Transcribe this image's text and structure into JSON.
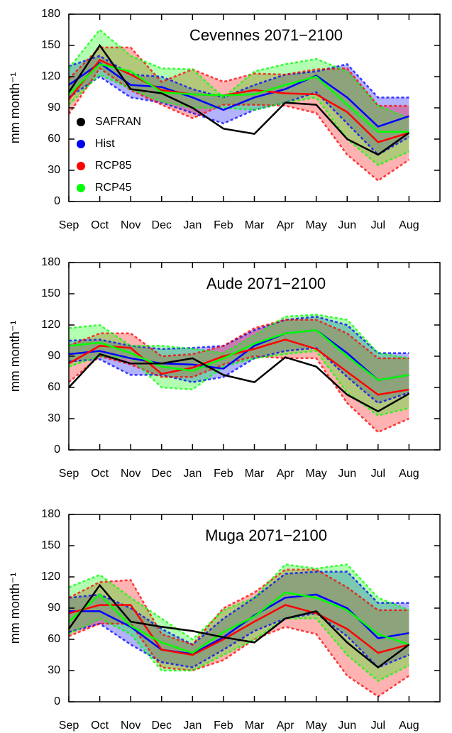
{
  "chart_data": [
    {
      "type": "line",
      "title": "Cevennes 2071−2100",
      "y_label": "mm month⁻¹",
      "legend": "center-left",
      "categories": [
        "Sep",
        "Oct",
        "Nov",
        "Dec",
        "Jan",
        "Feb",
        "Mar",
        "Apr",
        "May",
        "Jun",
        "Jul",
        "Aug"
      ],
      "ylim": [
        0,
        180
      ],
      "yticks": [
        0,
        30,
        60,
        90,
        120,
        150,
        180
      ],
      "series": [
        {
          "name": "SAFRAN",
          "color": "#000000",
          "values": [
            105,
            150,
            108,
            104,
            90,
            70,
            65,
            95,
            93,
            60,
            45,
            66
          ]
        },
        {
          "name": "Hist",
          "color": "#0000ff",
          "values": [
            112,
            133,
            112,
            110,
            100,
            88,
            100,
            108,
            121,
            100,
            72,
            82
          ],
          "lower": [
            100,
            120,
            100,
            95,
            85,
            75,
            88,
            95,
            105,
            75,
            45,
            62
          ],
          "upper": [
            130,
            140,
            122,
            120,
            108,
            100,
            112,
            122,
            125,
            132,
            100,
            100
          ]
        },
        {
          "name": "RCP85",
          "color": "#ff0000",
          "values": [
            98,
            136,
            122,
            107,
            103,
            102,
            107,
            104,
            103,
            86,
            57,
            66
          ],
          "lower": [
            84,
            128,
            107,
            93,
            80,
            93,
            93,
            92,
            85,
            45,
            20,
            40
          ],
          "upper": [
            118,
            148,
            148,
            115,
            127,
            115,
            123,
            122,
            127,
            128,
            92,
            92
          ]
        },
        {
          "name": "RCP45",
          "color": "#00ff00",
          "values": [
            103,
            132,
            125,
            105,
            103,
            102,
            103,
            112,
            120,
            93,
            67,
            67
          ],
          "lower": [
            93,
            122,
            108,
            96,
            90,
            90,
            88,
            95,
            100,
            60,
            35,
            48
          ],
          "upper": [
            128,
            165,
            140,
            128,
            127,
            100,
            125,
            132,
            137,
            125,
            92,
            80
          ]
        }
      ]
    },
    {
      "type": "line",
      "title": "Aude 2071−2100",
      "y_label": "mm month⁻¹",
      "categories": [
        "Sep",
        "Oct",
        "Nov",
        "Dec",
        "Jan",
        "Feb",
        "Mar",
        "Apr",
        "May",
        "Jun",
        "Jul",
        "Aug"
      ],
      "ylim": [
        0,
        180
      ],
      "yticks": [
        0,
        30,
        60,
        90,
        120,
        150,
        180
      ],
      "series": [
        {
          "name": "SAFRAN",
          "color": "#000000",
          "values": [
            60,
            92,
            83,
            83,
            88,
            72,
            65,
            89,
            80,
            53,
            37,
            54
          ]
        },
        {
          "name": "Hist",
          "color": "#0000ff",
          "values": [
            92,
            95,
            88,
            83,
            82,
            78,
            100,
            112,
            115,
            93,
            67,
            72
          ],
          "lower": [
            85,
            87,
            72,
            72,
            65,
            70,
            88,
            95,
            98,
            70,
            45,
            55
          ],
          "upper": [
            105,
            106,
            100,
            97,
            98,
            100,
            115,
            125,
            128,
            120,
            93,
            93
          ]
        },
        {
          "name": "RCP85",
          "color": "#ff0000",
          "values": [
            83,
            100,
            98,
            73,
            79,
            90,
            97,
            106,
            97,
            75,
            53,
            58
          ],
          "lower": [
            65,
            90,
            82,
            70,
            70,
            82,
            90,
            88,
            88,
            45,
            17,
            30
          ],
          "upper": [
            100,
            112,
            112,
            90,
            92,
            100,
            117,
            125,
            125,
            112,
            88,
            88
          ]
        },
        {
          "name": "RCP45",
          "color": "#00ff00",
          "values": [
            100,
            103,
            93,
            80,
            76,
            88,
            102,
            112,
            115,
            90,
            67,
            72
          ],
          "lower": [
            80,
            90,
            88,
            60,
            58,
            80,
            88,
            92,
            95,
            55,
            33,
            40
          ],
          "upper": [
            117,
            120,
            100,
            100,
            97,
            93,
            110,
            128,
            130,
            125,
            93,
            88
          ]
        }
      ]
    },
    {
      "type": "line",
      "title": "Muga 2071−2100",
      "y_label": "mm month⁻¹",
      "categories": [
        "Sep",
        "Oct",
        "Nov",
        "Dec",
        "Jan",
        "Feb",
        "Mar",
        "Apr",
        "May",
        "Jun",
        "Jul",
        "Aug"
      ],
      "ylim": [
        0,
        180
      ],
      "yticks": [
        0,
        30,
        60,
        90,
        120,
        150,
        180
      ],
      "series": [
        {
          "name": "SAFRAN",
          "color": "#000000",
          "values": [
            70,
            112,
            77,
            72,
            68,
            62,
            57,
            80,
            87,
            57,
            33,
            55
          ]
        },
        {
          "name": "Hist",
          "color": "#0000ff",
          "values": [
            87,
            87,
            72,
            50,
            46,
            62,
            83,
            100,
            103,
            90,
            61,
            66
          ],
          "lower": [
            67,
            75,
            55,
            38,
            33,
            50,
            68,
            80,
            85,
            63,
            33,
            45
          ],
          "upper": [
            100,
            103,
            90,
            70,
            55,
            80,
            100,
            123,
            125,
            125,
            95,
            95
          ]
        },
        {
          "name": "RCP85",
          "color": "#ff0000",
          "values": [
            85,
            93,
            93,
            50,
            45,
            60,
            77,
            93,
            85,
            70,
            47,
            55
          ],
          "lower": [
            63,
            75,
            75,
            33,
            30,
            40,
            60,
            72,
            65,
            25,
            5,
            25
          ],
          "upper": [
            100,
            115,
            117,
            65,
            55,
            90,
            105,
            127,
            127,
            110,
            88,
            88
          ]
        },
        {
          "name": "RCP45",
          "color": "#00ff00",
          "values": [
            77,
            103,
            73,
            57,
            47,
            67,
            82,
            105,
            100,
            88,
            65,
            55
          ],
          "lower": [
            65,
            80,
            65,
            30,
            30,
            45,
            60,
            80,
            80,
            45,
            20,
            35
          ],
          "upper": [
            110,
            122,
            100,
            80,
            60,
            88,
            100,
            132,
            128,
            132,
            100,
            88
          ]
        }
      ]
    }
  ]
}
